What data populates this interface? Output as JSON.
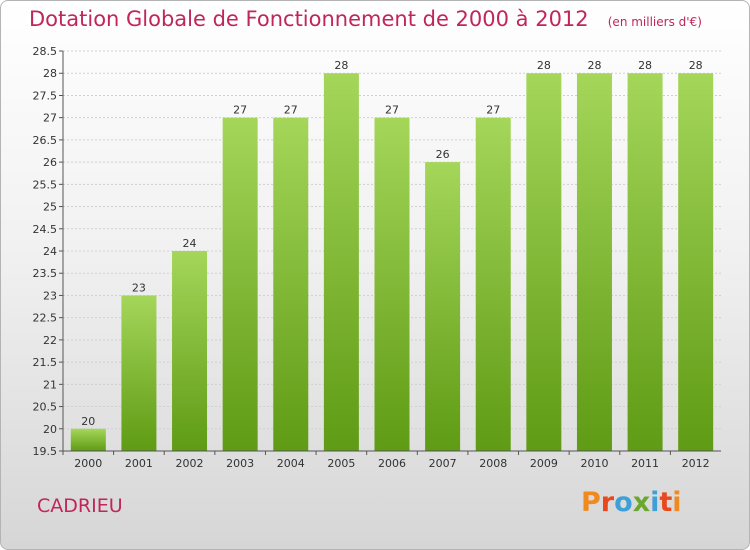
{
  "title": "Dotation Globale de Fonctionnement de 2000 à 2012",
  "unit": "(en milliers d'€)",
  "commune": "CADRIEU",
  "logo": {
    "text": "Proxiti",
    "letters": [
      "P",
      "r",
      "o",
      "x",
      "i",
      "t",
      "i"
    ]
  },
  "colors": {
    "title": "#c0265b",
    "bar_top": "#a4d65a",
    "bar_bottom": "#5f9b14",
    "grid": "#d0d0d0",
    "label": "#333333"
  },
  "chart_data": {
    "type": "bar",
    "categories": [
      "2000",
      "2001",
      "2002",
      "2003",
      "2004",
      "2005",
      "2006",
      "2007",
      "2008",
      "2009",
      "2010",
      "2011",
      "2012"
    ],
    "values": [
      20,
      23,
      24,
      27,
      27,
      28,
      27,
      26,
      27,
      28,
      28,
      28,
      28
    ],
    "data_labels": [
      "20",
      "23",
      "24",
      "27",
      "27",
      "28",
      "27",
      "26",
      "27",
      "28",
      "28",
      "28",
      "28"
    ],
    "yticks": [
      "19.5",
      "20",
      "20.5",
      "21",
      "21.5",
      "22",
      "22.5",
      "23",
      "23.5",
      "24",
      "24.5",
      "25",
      "25.5",
      "26",
      "26.5",
      "27",
      "27.5",
      "28",
      "28.5"
    ],
    "ylim": [
      19.5,
      28.5
    ],
    "grid": true,
    "legend": "none"
  }
}
